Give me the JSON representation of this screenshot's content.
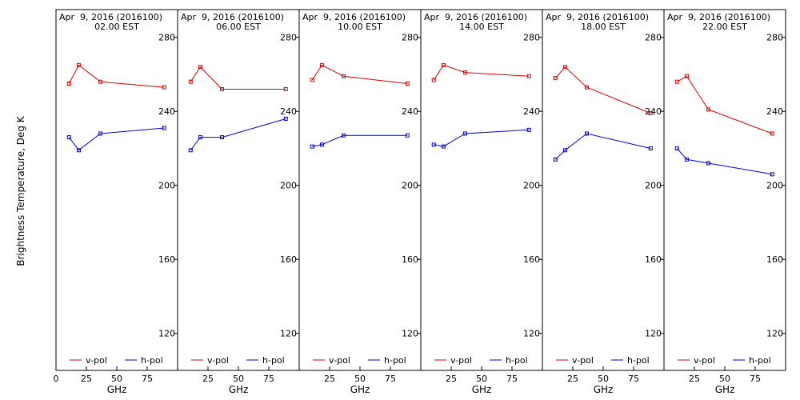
{
  "figure": {
    "ylabel": "Brightness Temperature, Deg K",
    "colors": {
      "v_pol": "#e00000",
      "h_pol": "#0000e0"
    }
  },
  "chart_data": [
    {
      "type": "line",
      "title": "Apr  9, 2016 (2016100)",
      "subtitle": "02.00 EST",
      "xlabel": "GHz",
      "xlim": [
        0,
        100
      ],
      "xticks": [
        0,
        25,
        50,
        75,
        100
      ],
      "ylim": [
        100,
        295
      ],
      "yticks": [
        120,
        160,
        200,
        240,
        280
      ],
      "x": [
        10.7,
        18.7,
        36.5,
        89
      ],
      "series": [
        {
          "name": "v-pol",
          "color": "#e00000",
          "values": [
            255,
            265,
            256,
            253
          ]
        },
        {
          "name": "h-pol",
          "color": "#0000e0",
          "values": [
            226,
            219,
            228,
            231
          ]
        }
      ]
    },
    {
      "type": "line",
      "title": "Apr  9, 2016 (2016100)",
      "subtitle": "06.00 EST",
      "xlabel": "GHz",
      "xlim": [
        0,
        100
      ],
      "xticks": [
        0,
        25,
        50,
        75,
        100
      ],
      "ylim": [
        100,
        295
      ],
      "yticks": [
        120,
        160,
        200,
        240,
        280
      ],
      "x": [
        10.7,
        18.7,
        36.5,
        89
      ],
      "series": [
        {
          "name": "v-pol",
          "color": "#e00000",
          "values": [
            256,
            264,
            252,
            252
          ]
        },
        {
          "name": "h-pol",
          "color": "#0000e0",
          "values": [
            219,
            226,
            226,
            236
          ]
        }
      ]
    },
    {
      "type": "line",
      "title": "Apr  9, 2016 (2016100)",
      "subtitle": "10.00 EST",
      "xlabel": "GHz",
      "xlim": [
        0,
        100
      ],
      "xticks": [
        0,
        25,
        50,
        75,
        100
      ],
      "ylim": [
        100,
        295
      ],
      "yticks": [
        120,
        160,
        200,
        240,
        280
      ],
      "x": [
        10.7,
        18.7,
        36.5,
        89
      ],
      "series": [
        {
          "name": "v-pol",
          "color": "#e00000",
          "values": [
            257,
            265,
            259,
            255
          ]
        },
        {
          "name": "h-pol",
          "color": "#0000e0",
          "values": [
            221,
            222,
            227,
            227
          ]
        }
      ]
    },
    {
      "type": "line",
      "title": "Apr  9, 2016 (2016100)",
      "subtitle": "14.00 EST",
      "xlabel": "GHz",
      "xlim": [
        0,
        100
      ],
      "xticks": [
        0,
        25,
        50,
        75,
        100
      ],
      "ylim": [
        100,
        295
      ],
      "yticks": [
        120,
        160,
        200,
        240,
        280
      ],
      "x": [
        10.7,
        18.7,
        36.5,
        89
      ],
      "series": [
        {
          "name": "v-pol",
          "color": "#e00000",
          "values": [
            257,
            265,
            261,
            259
          ]
        },
        {
          "name": "h-pol",
          "color": "#0000e0",
          "values": [
            222,
            221,
            228,
            230
          ]
        }
      ]
    },
    {
      "type": "line",
      "title": "Apr  9, 2016 (2016100)",
      "subtitle": "18.00 EST",
      "xlabel": "GHz",
      "xlim": [
        0,
        100
      ],
      "xticks": [
        0,
        25,
        50,
        75,
        100
      ],
      "ylim": [
        100,
        295
      ],
      "yticks": [
        120,
        160,
        200,
        240,
        280
      ],
      "x": [
        10.7,
        18.7,
        36.5,
        89
      ],
      "series": [
        {
          "name": "v-pol",
          "color": "#e00000",
          "values": [
            258,
            264,
            253,
            239
          ]
        },
        {
          "name": "h-pol",
          "color": "#0000e0",
          "values": [
            214,
            219,
            228,
            220
          ]
        }
      ]
    },
    {
      "type": "line",
      "title": "Apr  9, 2016 (2016100)",
      "subtitle": "22.00 EST",
      "xlabel": "GHz",
      "xlim": [
        0,
        100
      ],
      "xticks": [
        0,
        25,
        50,
        75,
        100
      ],
      "ylim": [
        100,
        295
      ],
      "yticks": [
        120,
        160,
        200,
        240,
        280
      ],
      "x": [
        10.7,
        18.7,
        36.5,
        89
      ],
      "series": [
        {
          "name": "v-pol",
          "color": "#e00000",
          "values": [
            256,
            259,
            241,
            228
          ]
        },
        {
          "name": "h-pol",
          "color": "#0000e0",
          "values": [
            220,
            214,
            212,
            206
          ]
        }
      ]
    }
  ]
}
